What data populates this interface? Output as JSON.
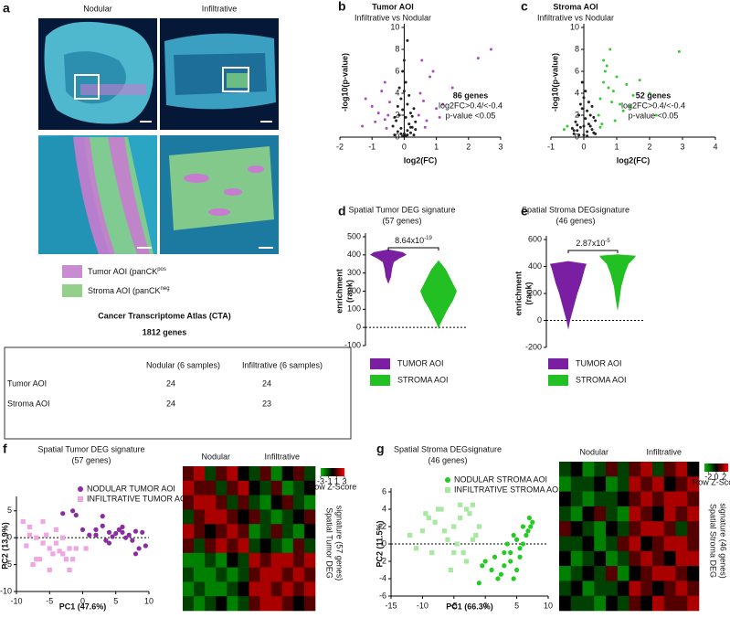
{
  "panel_a": {
    "label": "a",
    "columns": [
      "Nodular",
      "Infiltrative"
    ],
    "legend": [
      {
        "text": "Tumor AOI (panCK",
        "sup": "pos"
      },
      {
        "text": "Stroma AOI (panCK",
        "sup": "neg"
      }
    ],
    "atlas": [
      "Cancer Transcriptome Atlas (CTA)",
      "1812 genes"
    ]
  },
  "table": {
    "columns": [
      "Nodular (6 samples)",
      "Infiltrative (6 samples)"
    ],
    "rows": [
      {
        "label": "Tumor AOI",
        "values": [
          24,
          24
        ]
      },
      {
        "label": "Stroma AOI",
        "values": [
          24,
          23
        ]
      }
    ]
  },
  "chart_data": [
    {
      "panel": "b",
      "type": "scatter",
      "axis_origin": true,
      "title": "Tumor AOI",
      "subtitle": "Infiltrative vs Nodular",
      "xlabel": "log2(FC)",
      "ylabel": "-log10(p-value)",
      "xlim": [
        -2,
        3
      ],
      "xticks": [
        -2,
        -1,
        0,
        1,
        2,
        3
      ],
      "ylim": [
        0,
        10
      ],
      "yticks": [
        0,
        2,
        4,
        6,
        8,
        10
      ],
      "annotations": [
        {
          "text": "86 genes",
          "color": "#9b3bb0"
        },
        {
          "text": "log2FC>0.4/<-0.4"
        },
        {
          "text": "p-value <0.05"
        }
      ],
      "series": [
        {
          "color": "#222222",
          "x": [
            -0.3,
            -0.2,
            -0.1,
            0,
            0.1,
            0.2,
            0.3,
            -0.35,
            -0.25,
            -0.15,
            -0.05,
            0.05,
            0.15,
            0.25,
            0.35,
            -0.1,
            0,
            0.1,
            0.2,
            -0.2,
            0.05,
            -0.05,
            0.15,
            0.3,
            -0.3,
            0,
            0.1,
            -0.15,
            0.25,
            0.35,
            0.2,
            -0.05,
            0.1,
            0.05,
            -0.1
          ],
          "values": [
            0.2,
            0.5,
            0.8,
            0.3,
            0.6,
            0.4,
            0.2,
            1.0,
            1.5,
            2.0,
            2.5,
            1.8,
            1.2,
            0.9,
            1.4,
            3.5,
            4.2,
            3.0,
            2.2,
            2.8,
            5.0,
            6.0,
            3.8,
            2.6,
            1.8,
            7.0,
            8.8,
            4.5,
            1.9,
            0.7,
            0.9,
            0.1,
            0.2,
            0.15,
            0.3
          ]
        },
        {
          "color": "#a64fbf",
          "x": [
            -1.2,
            -1.0,
            -0.8,
            -0.6,
            -0.5,
            -0.45,
            -0.7,
            -0.9,
            -1.3,
            -0.55,
            0.5,
            0.6,
            0.8,
            1.0,
            1.2,
            1.5,
            0.45,
            0.7,
            0.9,
            1.1,
            2.3,
            2.7,
            -0.6,
            0.55,
            0.65
          ],
          "values": [
            3.5,
            2.8,
            2.2,
            1.6,
            2.0,
            3.2,
            4.2,
            1.4,
            1.0,
            0.8,
            4.0,
            3.3,
            5.5,
            2.6,
            3.0,
            4.5,
            2.0,
            1.5,
            6.0,
            1.8,
            7.2,
            8.0,
            5.0,
            7.0,
            0.9
          ]
        }
      ]
    },
    {
      "panel": "c",
      "type": "scatter",
      "axis_origin": true,
      "title": "Stroma AOI",
      "subtitle": "Infiltrative vs Nodular",
      "xlabel": "log2(FC)",
      "ylabel": "-log10(p-value)",
      "xlim": [
        -1,
        4
      ],
      "xticks": [
        -1,
        0,
        1,
        2,
        3,
        4
      ],
      "ylim": [
        0,
        10
      ],
      "yticks": [
        0,
        2,
        4,
        6,
        8,
        10
      ],
      "annotations": [
        {
          "text": "52 genes",
          "color": "#2aa02a"
        },
        {
          "text": "log2FC>0.4/<-0.4"
        },
        {
          "text": "p-value <0.05"
        }
      ],
      "series": [
        {
          "color": "#222222",
          "x": [
            -0.3,
            -0.2,
            -0.1,
            0,
            0.1,
            0.2,
            0.3,
            -0.35,
            -0.25,
            -0.15,
            -0.05,
            0.05,
            0.15,
            0.25,
            0.35,
            -0.1,
            0,
            0.1,
            0.2,
            -0.2,
            0.05,
            -0.05,
            0.15,
            0.3,
            -0.3,
            0,
            0.1,
            -0.15,
            0.25,
            0.35
          ],
          "values": [
            0.3,
            0.6,
            0.9,
            0.2,
            0.5,
            1.0,
            0.4,
            0.8,
            1.4,
            2.0,
            2.6,
            1.7,
            1.2,
            0.7,
            1.5,
            3.0,
            3.6,
            2.4,
            2.0,
            1.1,
            4.2,
            5.0,
            3.2,
            1.8,
            0.6,
            1.0,
            0.1,
            0.2,
            2.8,
            0.3
          ]
        },
        {
          "color": "#33cc33",
          "x": [
            0.45,
            0.5,
            0.6,
            0.7,
            0.8,
            0.9,
            1.0,
            1.1,
            1.2,
            1.3,
            1.5,
            1.7,
            2.0,
            2.2,
            2.9,
            0.55,
            0.65,
            0.75,
            -0.5,
            -0.6,
            0.85,
            1.4,
            0.95,
            0.6,
            0.5
          ],
          "values": [
            2.0,
            3.5,
            5.0,
            6.5,
            8.0,
            4.2,
            5.5,
            3.0,
            2.4,
            4.8,
            3.8,
            5.2,
            4.0,
            2.0,
            7.8,
            1.2,
            6.0,
            4.5,
            1.0,
            0.7,
            3.2,
            2.8,
            1.5,
            7.0,
            0.9
          ]
        }
      ]
    },
    {
      "panel": "d",
      "type": "violin",
      "zero_line": true,
      "title": "Spatial Tumor DEG signature",
      "subtitle": "(57 genes)",
      "ylabel": [
        "enrichment",
        "(rank)"
      ],
      "ylim": [
        -100,
        500
      ],
      "yticks": [
        -100,
        0,
        100,
        200,
        300,
        400,
        500
      ],
      "pvalue": {
        "base": "8.64x10",
        "exp": "-19"
      },
      "series": [
        {
          "name": "TUMOR AOI",
          "color": "#7b1fa2",
          "y": [
            240,
            280,
            320,
            360,
            380,
            400,
            415,
            430
          ],
          "density": [
            0,
            0.15,
            0.2,
            0.3,
            0.6,
            1,
            0.8,
            0
          ]
        },
        {
          "name": "STROMA AOI",
          "color": "#22c022",
          "y": [
            -10,
            20,
            60,
            100,
            150,
            200,
            260,
            320,
            370
          ],
          "density": [
            0,
            0.1,
            0.3,
            0.5,
            0.8,
            1,
            0.7,
            0.4,
            0
          ]
        }
      ]
    },
    {
      "panel": "e",
      "type": "violin",
      "zero_line": true,
      "title": "Spatial Stroma DEGsignature",
      "subtitle": "(46 genes)",
      "ylabel": [
        "enrichment",
        "(rank)"
      ],
      "ylim": [
        -200,
        600
      ],
      "yticks": [
        -200,
        0,
        200,
        400,
        600
      ],
      "pvalue": {
        "base": "2.87x10",
        "exp": "-5"
      },
      "series": [
        {
          "name": "TUMOR AOI",
          "color": "#7b1fa2",
          "y": [
            -70,
            0,
            100,
            200,
            280,
            330,
            380,
            420,
            440
          ],
          "density": [
            0,
            0.1,
            0.3,
            0.5,
            0.7,
            0.8,
            0.9,
            1,
            0
          ]
        },
        {
          "name": "STROMA AOI",
          "color": "#22c022",
          "y": [
            70,
            150,
            250,
            350,
            420,
            460,
            480,
            490
          ],
          "density": [
            0,
            0.1,
            0.2,
            0.4,
            0.6,
            0.9,
            1,
            0
          ]
        }
      ]
    },
    {
      "panel": "f",
      "type": "scatter",
      "zero_line": true,
      "title": "Spatial Tumor DEG signature",
      "subtitle": "(57 genes)",
      "xlabel": "PC1 (47.6%)",
      "ylabel": "PC2 (13.9%)",
      "xlim": [
        -10,
        10
      ],
      "xticks": [
        -10,
        -5,
        0,
        5,
        10
      ],
      "ylim": [
        -10,
        7
      ],
      "yticks": [
        -10,
        -5,
        0,
        5
      ],
      "series": [
        {
          "name": "NODULAR TUMOR AOI",
          "color": "#8b2ca0",
          "marker": "circle",
          "x": [
            -1,
            0,
            1,
            2,
            3,
            4,
            5,
            6,
            7,
            8,
            9,
            3.5,
            4.5,
            5.5,
            6.5,
            7.5,
            8.5,
            -3,
            -1.5,
            2,
            4,
            6,
            8,
            9.5,
            3
          ],
          "values": [
            4.2,
            1.5,
            0.5,
            1.5,
            4,
            1,
            0.8,
            2,
            0.5,
            1.2,
            1,
            -0.5,
            0.2,
            1.5,
            0,
            -0.5,
            -2,
            4.5,
            5,
            0.5,
            -1,
            1,
            -3,
            -1.5,
            2.2
          ]
        },
        {
          "name": "INFILTRATIVE TUMOR AOI",
          "color": "#efa6e2",
          "marker": "square",
          "x": [
            -9,
            -8,
            -7,
            -6,
            -5,
            -4,
            -3,
            -2,
            -8.5,
            -7.5,
            -6.5,
            -5.5,
            -4.5,
            -3.5,
            -2.5,
            -1.5,
            -6,
            -4,
            -2,
            -1,
            -7,
            -5,
            -3,
            0.5,
            -8
          ],
          "values": [
            3,
            2,
            0,
            -1,
            -2,
            1.5,
            -3,
            -2,
            -1.5,
            -5,
            -4,
            0.5,
            -3,
            -2.5,
            -4,
            -4,
            3,
            -1,
            -6,
            -2,
            -4,
            -6,
            0,
            -2,
            0.5
          ]
        }
      ]
    },
    {
      "type": "heatmap",
      "categories": [
        "Nodular",
        "Infiltrative"
      ],
      "zlim": [
        -3,
        3
      ],
      "zticks": [
        -3,
        -1,
        1,
        3
      ],
      "colorbar_label": "Row Z-Score",
      "side_label": [
        "Spatial Tumor DEG",
        "signature (57 genes)"
      ],
      "values": [
        [
          1,
          2,
          -1,
          1,
          2,
          0,
          -1,
          1,
          -2,
          0,
          1,
          -1
        ],
        [
          2,
          1,
          1,
          -1,
          1,
          2,
          0,
          -1,
          1,
          -2,
          -1,
          0
        ],
        [
          1,
          2,
          2,
          1,
          -1,
          1,
          -1,
          -2,
          0,
          1,
          -1,
          -2
        ],
        [
          -1,
          1,
          2,
          2,
          1,
          0,
          1,
          -1,
          -2,
          -1,
          0,
          1
        ],
        [
          2,
          1,
          0,
          1,
          2,
          1,
          -2,
          -1,
          1,
          -1,
          -2,
          0
        ],
        [
          1,
          -1,
          1,
          2,
          1,
          2,
          -1,
          0,
          -1,
          -2,
          1,
          -1
        ],
        [
          -2,
          -2,
          -1,
          -2,
          0,
          -1,
          2,
          1,
          2,
          2,
          1,
          2
        ],
        [
          -1,
          -2,
          -2,
          -1,
          -2,
          -1,
          1,
          2,
          2,
          1,
          2,
          1
        ],
        [
          -2,
          -1,
          -2,
          -2,
          -1,
          0,
          2,
          2,
          1,
          2,
          1,
          2
        ],
        [
          -1,
          -2,
          -1,
          0,
          -2,
          -1,
          1,
          2,
          2,
          1,
          0,
          1
        ]
      ]
    },
    {
      "panel": "g",
      "type": "scatter",
      "zero_line": true,
      "title": "Spatial Stroma DEGsignature",
      "subtitle": "(46 genes)",
      "xlabel": "PC1 (66.3%)",
      "ylabel": "PC2 (11.5%)",
      "xlim": [
        -15,
        10
      ],
      "xticks": [
        -15,
        -10,
        -5,
        0,
        5,
        10
      ],
      "ylim": [
        -6,
        6
      ],
      "yticks": [
        -6,
        -4,
        -2,
        0,
        2,
        4,
        6
      ],
      "series": [
        {
          "name": "NODULAR STROMA AOI",
          "color": "#22cc22",
          "marker": "circle",
          "x": [
            0,
            1,
            2,
            3,
            3.5,
            4,
            4.5,
            5,
            5.5,
            6,
            6.5,
            7,
            7.5,
            -1,
            2.5,
            4,
            5,
            6,
            3,
            1.5,
            5.5,
            6.8,
            7.2,
            -0.5,
            4.5
          ],
          "values": [
            -2,
            -3,
            -4,
            -1,
            0,
            -2,
            1,
            0.5,
            -1.5,
            2,
            1,
            3,
            2.5,
            -4.5,
            -3.5,
            -1,
            -3,
            0,
            -2.5,
            -1.5,
            -0.5,
            1.5,
            2,
            -2.5,
            -4
          ]
        },
        {
          "name": "INFILTRATIVE STROMA AOI",
          "color": "#a8e8a0",
          "marker": "square",
          "x": [
            -12,
            -10,
            -9,
            -8,
            -7,
            -6,
            -5,
            -4,
            -3,
            -2,
            -1,
            -11,
            -8.5,
            -6.5,
            -5.5,
            -4.5,
            -3.5,
            -2.5,
            -1.5,
            -7.5,
            -5,
            -3,
            -2,
            -9.5,
            -4
          ],
          "values": [
            1,
            1.5,
            3,
            2.5,
            4,
            0.5,
            -1,
            3,
            4,
            4.5,
            2,
            -0.5,
            -1,
            1.5,
            -3,
            0,
            -1,
            3.5,
            1,
            4,
            2,
            -2,
            0.5,
            3.5,
            4.5
          ]
        }
      ]
    },
    {
      "type": "heatmap",
      "categories": [
        "Nodular",
        "Infiltrative"
      ],
      "zlim": [
        -3,
        3
      ],
      "zticks": [
        -2,
        0,
        2
      ],
      "colorbar_label": "Row Z-Score",
      "side_label": [
        "Spatial Stroma DEG",
        "signature (46 genes)"
      ],
      "values": [
        [
          -1,
          0,
          -2,
          -1,
          1,
          -1,
          1,
          2,
          -1,
          1,
          2,
          0
        ],
        [
          -2,
          -1,
          -1,
          0,
          -2,
          -1,
          2,
          1,
          2,
          0,
          1,
          2
        ],
        [
          0,
          -1,
          -2,
          -1,
          -1,
          0,
          1,
          2,
          1,
          2,
          2,
          1
        ],
        [
          -1,
          -2,
          0,
          1,
          -1,
          -2,
          2,
          1,
          0,
          2,
          1,
          2
        ],
        [
          1,
          0,
          -1,
          -2,
          0,
          -1,
          1,
          2,
          2,
          1,
          -1,
          1
        ],
        [
          -1,
          -1,
          0,
          -2,
          -1,
          1,
          2,
          0,
          1,
          2,
          2,
          1
        ],
        [
          0,
          -2,
          -1,
          0,
          -2,
          -1,
          1,
          2,
          1,
          0,
          2,
          2
        ],
        [
          -2,
          -1,
          0,
          -1,
          1,
          -2,
          0,
          1,
          2,
          2,
          1,
          0
        ],
        [
          -1,
          0,
          -2,
          -1,
          -1,
          0,
          2,
          1,
          0,
          1,
          2,
          1
        ],
        [
          0,
          -1,
          -1,
          -2,
          0,
          -1,
          1,
          0,
          2,
          1,
          1,
          2
        ]
      ]
    }
  ]
}
